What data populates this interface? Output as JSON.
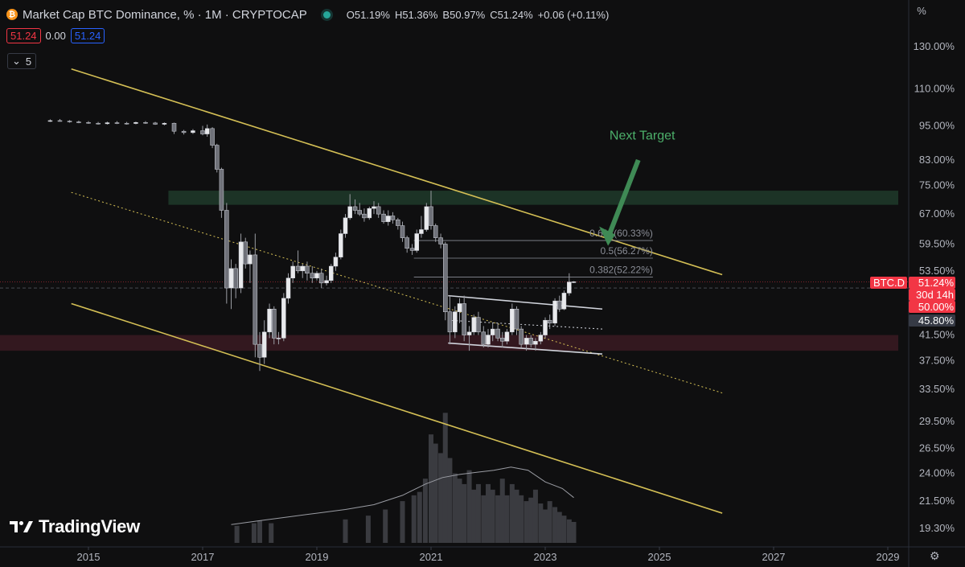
{
  "header": {
    "title": "Market Cap BTC Dominance, % · 1M · CRYPTOCAP",
    "ohlc": "O51.19% H51.36% B50.97% C51.24% +0.06 (+0.11%)",
    "open_label": "O",
    "open": "51.19%",
    "high_label": "H",
    "high": "51.36%",
    "low_label": "B",
    "low": "50.97%",
    "close_label": "C",
    "close": "51.24%",
    "change": "+0.06 (+0.11%)"
  },
  "price_boxes": {
    "sell": "51.24",
    "spread": "0.00",
    "buy": "51.24"
  },
  "indicator": {
    "count": "5"
  },
  "brand": "TradingView",
  "axis_unit": "%",
  "chart_data": {
    "type": "candlestick",
    "title": "Market Cap BTC Dominance, %",
    "x_ticks": [
      "2015",
      "2017",
      "2019",
      "2021",
      "2023",
      "2025",
      "2027",
      "2029"
    ],
    "y_ticks": [
      "130.00%",
      "110.00%",
      "95.00%",
      "83.00%",
      "75.00%",
      "67.00%",
      "59.50%",
      "53.50%",
      "41.50%",
      "37.50%",
      "33.50%",
      "29.50%",
      "26.50%",
      "24.00%",
      "21.50%",
      "19.30%"
    ],
    "y_scale": "log",
    "price_labels": [
      {
        "text": "BTC.D",
        "kind": "symbol",
        "color": "#f23645"
      },
      {
        "text": "51.24%",
        "kind": "last",
        "color": "#f23645"
      },
      {
        "text": "30d 14h",
        "kind": "countdown",
        "color": "#f23645"
      },
      {
        "text": "50.00%",
        "kind": "level",
        "color": "#f23645"
      },
      {
        "text": "45.80%",
        "kind": "level",
        "color": "#363a45"
      }
    ],
    "fib_levels": [
      {
        "label": "0.618(60.33%)",
        "value": 60.33
      },
      {
        "label": "0.5(56.27%)",
        "value": 56.27
      },
      {
        "label": "0.382(52.22%)",
        "value": 52.22
      }
    ],
    "annotation": "Next Target",
    "zones": [
      {
        "name": "resistance",
        "from": 69.5,
        "to": 73.5,
        "color": "#1e3a2a"
      },
      {
        "name": "support",
        "from": 39.0,
        "to": 41.5,
        "color": "#3a1a22"
      }
    ],
    "candles": [
      {
        "t": 2014.33,
        "o": 97,
        "h": 97.5,
        "l": 96.5,
        "c": 97
      },
      {
        "t": 2014.5,
        "o": 97,
        "h": 97.6,
        "l": 96.6,
        "c": 96.8
      },
      {
        "t": 2014.67,
        "o": 96.8,
        "h": 97.2,
        "l": 96.2,
        "c": 96.5
      },
      {
        "t": 2014.83,
        "o": 96.5,
        "h": 97.0,
        "l": 96.0,
        "c": 96.3
      },
      {
        "t": 2015.0,
        "o": 96.3,
        "h": 96.8,
        "l": 95.8,
        "c": 96.0
      },
      {
        "t": 2015.17,
        "o": 96.0,
        "h": 96.5,
        "l": 95.5,
        "c": 95.8
      },
      {
        "t": 2015.33,
        "o": 95.8,
        "h": 96.6,
        "l": 95.5,
        "c": 96.2
      },
      {
        "t": 2015.5,
        "o": 96.2,
        "h": 96.8,
        "l": 95.7,
        "c": 96.0
      },
      {
        "t": 2015.67,
        "o": 96.0,
        "h": 96.5,
        "l": 95.5,
        "c": 95.9
      },
      {
        "t": 2015.83,
        "o": 95.9,
        "h": 96.6,
        "l": 95.6,
        "c": 96.3
      },
      {
        "t": 2016.0,
        "o": 96.3,
        "h": 96.8,
        "l": 95.8,
        "c": 96.1
      },
      {
        "t": 2016.17,
        "o": 96.1,
        "h": 96.5,
        "l": 95.4,
        "c": 95.6
      },
      {
        "t": 2016.33,
        "o": 95.6,
        "h": 96.3,
        "l": 95.2,
        "c": 96.0
      },
      {
        "t": 2016.5,
        "o": 96.0,
        "h": 96.2,
        "l": 92.0,
        "c": 93.0
      },
      {
        "t": 2016.67,
        "o": 93.0,
        "h": 93.5,
        "l": 91.8,
        "c": 92.5
      },
      {
        "t": 2016.83,
        "o": 92.5,
        "h": 93.8,
        "l": 92.0,
        "c": 93.2
      },
      {
        "t": 2017.0,
        "o": 93.2,
        "h": 95.0,
        "l": 91.5,
        "c": 92.0
      },
      {
        "t": 2017.08,
        "o": 92.0,
        "h": 95.5,
        "l": 91.0,
        "c": 94.0
      },
      {
        "t": 2017.17,
        "o": 94.0,
        "h": 94.5,
        "l": 87.0,
        "c": 88.0
      },
      {
        "t": 2017.25,
        "o": 88.0,
        "h": 88.5,
        "l": 79.0,
        "c": 80.0
      },
      {
        "t": 2017.33,
        "o": 80.0,
        "h": 80.5,
        "l": 66.0,
        "c": 68.0
      },
      {
        "t": 2017.42,
        "o": 68.0,
        "h": 70.0,
        "l": 47.0,
        "c": 50.0
      },
      {
        "t": 2017.5,
        "o": 50.0,
        "h": 56.0,
        "l": 46.0,
        "c": 54.0
      },
      {
        "t": 2017.58,
        "o": 54.0,
        "h": 55.0,
        "l": 48.0,
        "c": 50.0
      },
      {
        "t": 2017.67,
        "o": 50.0,
        "h": 62.0,
        "l": 49.0,
        "c": 60.0
      },
      {
        "t": 2017.75,
        "o": 60.0,
        "h": 61.0,
        "l": 54.0,
        "c": 55.0
      },
      {
        "t": 2017.83,
        "o": 55.0,
        "h": 58.0,
        "l": 51.0,
        "c": 57.0
      },
      {
        "t": 2017.92,
        "o": 57.0,
        "h": 62.0,
        "l": 38.0,
        "c": 40.0
      },
      {
        "t": 2018.0,
        "o": 40.0,
        "h": 42.0,
        "l": 36.0,
        "c": 38.0
      },
      {
        "t": 2018.08,
        "o": 38.0,
        "h": 44.0,
        "l": 37.0,
        "c": 42.0
      },
      {
        "t": 2018.17,
        "o": 42.0,
        "h": 47.0,
        "l": 41.0,
        "c": 46.0
      },
      {
        "t": 2018.25,
        "o": 46.0,
        "h": 46.5,
        "l": 40.0,
        "c": 41.0
      },
      {
        "t": 2018.33,
        "o": 41.0,
        "h": 42.0,
        "l": 40.0,
        "c": 41.0
      },
      {
        "t": 2018.42,
        "o": 41.0,
        "h": 49.0,
        "l": 40.5,
        "c": 48.0
      },
      {
        "t": 2018.5,
        "o": 48.0,
        "h": 53.0,
        "l": 47.0,
        "c": 52.0
      },
      {
        "t": 2018.58,
        "o": 52.0,
        "h": 55.5,
        "l": 51.0,
        "c": 54.5
      },
      {
        "t": 2018.67,
        "o": 54.5,
        "h": 58.0,
        "l": 53.0,
        "c": 53.5
      },
      {
        "t": 2018.75,
        "o": 53.5,
        "h": 55.0,
        "l": 52.0,
        "c": 54.5
      },
      {
        "t": 2018.83,
        "o": 54.5,
        "h": 55.5,
        "l": 51.5,
        "c": 53.0
      },
      {
        "t": 2018.92,
        "o": 53.0,
        "h": 54.5,
        "l": 51.0,
        "c": 52.0
      },
      {
        "t": 2019.0,
        "o": 52.0,
        "h": 53.5,
        "l": 51.5,
        "c": 53.0
      },
      {
        "t": 2019.08,
        "o": 53.0,
        "h": 54.0,
        "l": 50.0,
        "c": 51.0
      },
      {
        "t": 2019.17,
        "o": 51.0,
        "h": 52.5,
        "l": 50.5,
        "c": 51.5
      },
      {
        "t": 2019.25,
        "o": 51.5,
        "h": 55.0,
        "l": 51.0,
        "c": 54.5
      },
      {
        "t": 2019.33,
        "o": 54.5,
        "h": 57.5,
        "l": 53.5,
        "c": 56.5
      },
      {
        "t": 2019.42,
        "o": 56.5,
        "h": 63.0,
        "l": 56.0,
        "c": 62.0
      },
      {
        "t": 2019.5,
        "o": 62.0,
        "h": 67.0,
        "l": 61.0,
        "c": 66.0
      },
      {
        "t": 2019.58,
        "o": 66.0,
        "h": 72.5,
        "l": 65.5,
        "c": 69.0
      },
      {
        "t": 2019.67,
        "o": 69.0,
        "h": 71.0,
        "l": 67.0,
        "c": 68.0
      },
      {
        "t": 2019.75,
        "o": 68.0,
        "h": 70.0,
        "l": 66.5,
        "c": 67.0
      },
      {
        "t": 2019.83,
        "o": 67.0,
        "h": 68.5,
        "l": 65.0,
        "c": 66.0
      },
      {
        "t": 2019.92,
        "o": 66.0,
        "h": 69.0,
        "l": 65.5,
        "c": 68.5
      },
      {
        "t": 2020.0,
        "o": 68.5,
        "h": 70.5,
        "l": 67.0,
        "c": 69.0
      },
      {
        "t": 2020.08,
        "o": 69.0,
        "h": 70.0,
        "l": 66.0,
        "c": 67.0
      },
      {
        "t": 2020.17,
        "o": 67.0,
        "h": 68.0,
        "l": 64.5,
        "c": 65.0
      },
      {
        "t": 2020.25,
        "o": 65.0,
        "h": 68.0,
        "l": 64.0,
        "c": 66.5
      },
      {
        "t": 2020.33,
        "o": 66.5,
        "h": 67.5,
        "l": 64.5,
        "c": 65.5
      },
      {
        "t": 2020.42,
        "o": 65.5,
        "h": 66.0,
        "l": 63.0,
        "c": 64.0
      },
      {
        "t": 2020.5,
        "o": 64.0,
        "h": 65.0,
        "l": 60.0,
        "c": 61.0
      },
      {
        "t": 2020.58,
        "o": 61.0,
        "h": 61.5,
        "l": 57.5,
        "c": 58.5
      },
      {
        "t": 2020.67,
        "o": 58.5,
        "h": 59.5,
        "l": 57.0,
        "c": 58.0
      },
      {
        "t": 2020.75,
        "o": 58.0,
        "h": 63.0,
        "l": 57.5,
        "c": 62.0
      },
      {
        "t": 2020.83,
        "o": 62.0,
        "h": 66.5,
        "l": 61.0,
        "c": 63.0
      },
      {
        "t": 2020.92,
        "o": 63.0,
        "h": 70.0,
        "l": 62.5,
        "c": 69.0
      },
      {
        "t": 2021.0,
        "o": 69.0,
        "h": 73.5,
        "l": 63.0,
        "c": 64.0
      },
      {
        "t": 2021.08,
        "o": 64.0,
        "h": 64.5,
        "l": 60.0,
        "c": 61.0
      },
      {
        "t": 2021.17,
        "o": 61.0,
        "h": 62.0,
        "l": 58.5,
        "c": 59.5
      },
      {
        "t": 2021.25,
        "o": 59.5,
        "h": 60.0,
        "l": 44.0,
        "c": 45.5
      },
      {
        "t": 2021.33,
        "o": 45.5,
        "h": 48.5,
        "l": 40.0,
        "c": 42.0
      },
      {
        "t": 2021.42,
        "o": 42.0,
        "h": 46.5,
        "l": 41.0,
        "c": 45.5
      },
      {
        "t": 2021.5,
        "o": 45.5,
        "h": 48.0,
        "l": 43.5,
        "c": 47.0
      },
      {
        "t": 2021.58,
        "o": 47.0,
        "h": 48.5,
        "l": 40.5,
        "c": 41.5
      },
      {
        "t": 2021.67,
        "o": 41.5,
        "h": 43.0,
        "l": 39.0,
        "c": 42.0
      },
      {
        "t": 2021.75,
        "o": 42.0,
        "h": 45.0,
        "l": 41.5,
        "c": 44.5
      },
      {
        "t": 2021.83,
        "o": 44.5,
        "h": 45.5,
        "l": 41.5,
        "c": 42.0
      },
      {
        "t": 2021.92,
        "o": 42.0,
        "h": 43.0,
        "l": 39.5,
        "c": 40.0
      },
      {
        "t": 2022.0,
        "o": 40.0,
        "h": 42.5,
        "l": 39.5,
        "c": 41.5
      },
      {
        "t": 2022.08,
        "o": 41.5,
        "h": 43.5,
        "l": 40.5,
        "c": 42.5
      },
      {
        "t": 2022.17,
        "o": 42.5,
        "h": 43.5,
        "l": 40.5,
        "c": 41.0
      },
      {
        "t": 2022.25,
        "o": 41.0,
        "h": 42.0,
        "l": 39.5,
        "c": 40.5
      },
      {
        "t": 2022.33,
        "o": 40.5,
        "h": 42.5,
        "l": 40.0,
        "c": 42.0
      },
      {
        "t": 2022.42,
        "o": 42.0,
        "h": 47.0,
        "l": 41.5,
        "c": 46.0
      },
      {
        "t": 2022.5,
        "o": 46.0,
        "h": 46.5,
        "l": 41.5,
        "c": 42.5
      },
      {
        "t": 2022.58,
        "o": 42.5,
        "h": 43.0,
        "l": 39.5,
        "c": 40.0
      },
      {
        "t": 2022.67,
        "o": 40.0,
        "h": 41.5,
        "l": 39.0,
        "c": 41.0
      },
      {
        "t": 2022.75,
        "o": 41.0,
        "h": 41.5,
        "l": 39.5,
        "c": 40.0
      },
      {
        "t": 2022.83,
        "o": 40.0,
        "h": 41.0,
        "l": 39.0,
        "c": 40.5
      },
      {
        "t": 2022.92,
        "o": 40.5,
        "h": 42.0,
        "l": 40.0,
        "c": 41.5
      },
      {
        "t": 2023.0,
        "o": 41.5,
        "h": 44.5,
        "l": 41.0,
        "c": 44.0
      },
      {
        "t": 2023.08,
        "o": 44.0,
        "h": 45.0,
        "l": 42.5,
        "c": 43.5
      },
      {
        "t": 2023.17,
        "o": 43.5,
        "h": 48.0,
        "l": 43.0,
        "c": 47.5
      },
      {
        "t": 2023.25,
        "o": 47.5,
        "h": 48.5,
        "l": 45.5,
        "c": 46.0
      },
      {
        "t": 2023.33,
        "o": 46.0,
        "h": 49.5,
        "l": 45.8,
        "c": 49.0
      },
      {
        "t": 2023.42,
        "o": 49.0,
        "h": 53.0,
        "l": 48.5,
        "c": 51.19
      },
      {
        "t": 2023.5,
        "o": 51.19,
        "h": 51.36,
        "l": 50.97,
        "c": 51.24
      }
    ],
    "volume_ma": [
      {
        "t": 2017.5,
        "v": 19.6
      },
      {
        "t": 2018.0,
        "v": 19.9
      },
      {
        "t": 2018.5,
        "v": 20.2
      },
      {
        "t": 2019.0,
        "v": 20.5
      },
      {
        "t": 2019.5,
        "v": 20.8
      },
      {
        "t": 2020.0,
        "v": 21.2
      },
      {
        "t": 2020.5,
        "v": 22.0
      },
      {
        "t": 2020.9,
        "v": 23.0
      },
      {
        "t": 2021.2,
        "v": 23.6
      },
      {
        "t": 2021.5,
        "v": 23.9
      },
      {
        "t": 2021.8,
        "v": 24.1
      },
      {
        "t": 2022.1,
        "v": 24.3
      },
      {
        "t": 2022.4,
        "v": 24.6
      },
      {
        "t": 2022.7,
        "v": 24.3
      },
      {
        "t": 2023.0,
        "v": 23.2
      },
      {
        "t": 2023.3,
        "v": 22.6
      },
      {
        "t": 2023.5,
        "v": 21.8
      }
    ],
    "volume": [
      {
        "t": 2017.6,
        "v": 19.5
      },
      {
        "t": 2017.9,
        "v": 19.7
      },
      {
        "t": 2018.0,
        "v": 19.9
      },
      {
        "t": 2018.2,
        "v": 19.7
      },
      {
        "t": 2019.5,
        "v": 20.0
      },
      {
        "t": 2019.9,
        "v": 20.3
      },
      {
        "t": 2020.2,
        "v": 20.8
      },
      {
        "t": 2020.5,
        "v": 21.5
      },
      {
        "t": 2020.7,
        "v": 22.0
      },
      {
        "t": 2020.8,
        "v": 22.3
      },
      {
        "t": 2020.9,
        "v": 23.5
      },
      {
        "t": 2021.0,
        "v": 28.0
      },
      {
        "t": 2021.08,
        "v": 27.0
      },
      {
        "t": 2021.17,
        "v": 26.0
      },
      {
        "t": 2021.25,
        "v": 30.5
      },
      {
        "t": 2021.33,
        "v": 25.5
      },
      {
        "t": 2021.42,
        "v": 24.0
      },
      {
        "t": 2021.5,
        "v": 23.5
      },
      {
        "t": 2021.58,
        "v": 23.0
      },
      {
        "t": 2021.67,
        "v": 24.3
      },
      {
        "t": 2021.75,
        "v": 22.5
      },
      {
        "t": 2021.83,
        "v": 23.0
      },
      {
        "t": 2021.92,
        "v": 22.0
      },
      {
        "t": 2022.0,
        "v": 23.0
      },
      {
        "t": 2022.08,
        "v": 22.5
      },
      {
        "t": 2022.17,
        "v": 22.0
      },
      {
        "t": 2022.25,
        "v": 23.5
      },
      {
        "t": 2022.33,
        "v": 22.0
      },
      {
        "t": 2022.42,
        "v": 23.0
      },
      {
        "t": 2022.5,
        "v": 22.5
      },
      {
        "t": 2022.58,
        "v": 22.0
      },
      {
        "t": 2022.67,
        "v": 21.5
      },
      {
        "t": 2022.75,
        "v": 21.8
      },
      {
        "t": 2022.83,
        "v": 22.5
      },
      {
        "t": 2022.92,
        "v": 21.3
      },
      {
        "t": 2023.0,
        "v": 20.8
      },
      {
        "t": 2023.08,
        "v": 21.5
      },
      {
        "t": 2023.17,
        "v": 21.0
      },
      {
        "t": 2023.25,
        "v": 20.6
      },
      {
        "t": 2023.33,
        "v": 20.3
      },
      {
        "t": 2023.42,
        "v": 20.0
      },
      {
        "t": 2023.5,
        "v": 19.8
      }
    ],
    "trend_lines": [
      {
        "name": "channel-top",
        "x1": 2014.7,
        "y1": 119,
        "x2": 2026.1,
        "y2": 52.7,
        "color": "#d4bf55"
      },
      {
        "name": "channel-bottom",
        "x1": 2014.7,
        "y1": 47.0,
        "x2": 2026.1,
        "y2": 20.5,
        "color": "#d4bf55"
      },
      {
        "name": "channel-mid-dotted",
        "x1": 2014.7,
        "y1": 73.0,
        "x2": 2026.1,
        "y2": 33.0,
        "color": "#d4bf55",
        "dashed": true
      },
      {
        "name": "flag-top",
        "x1": 2021.3,
        "y1": 48.5,
        "x2": 2024.0,
        "y2": 46.0,
        "color": "#d1d4dc"
      },
      {
        "name": "flag-bottom",
        "x1": 2021.3,
        "y1": 40.2,
        "x2": 2024.0,
        "y2": 38.5,
        "color": "#d1d4dc"
      },
      {
        "name": "flag-mid-dotted",
        "x1": 2021.3,
        "y1": 44.0,
        "x2": 2024.0,
        "y2": 42.5,
        "color": "#d1d4dc",
        "dashed": true
      }
    ]
  }
}
